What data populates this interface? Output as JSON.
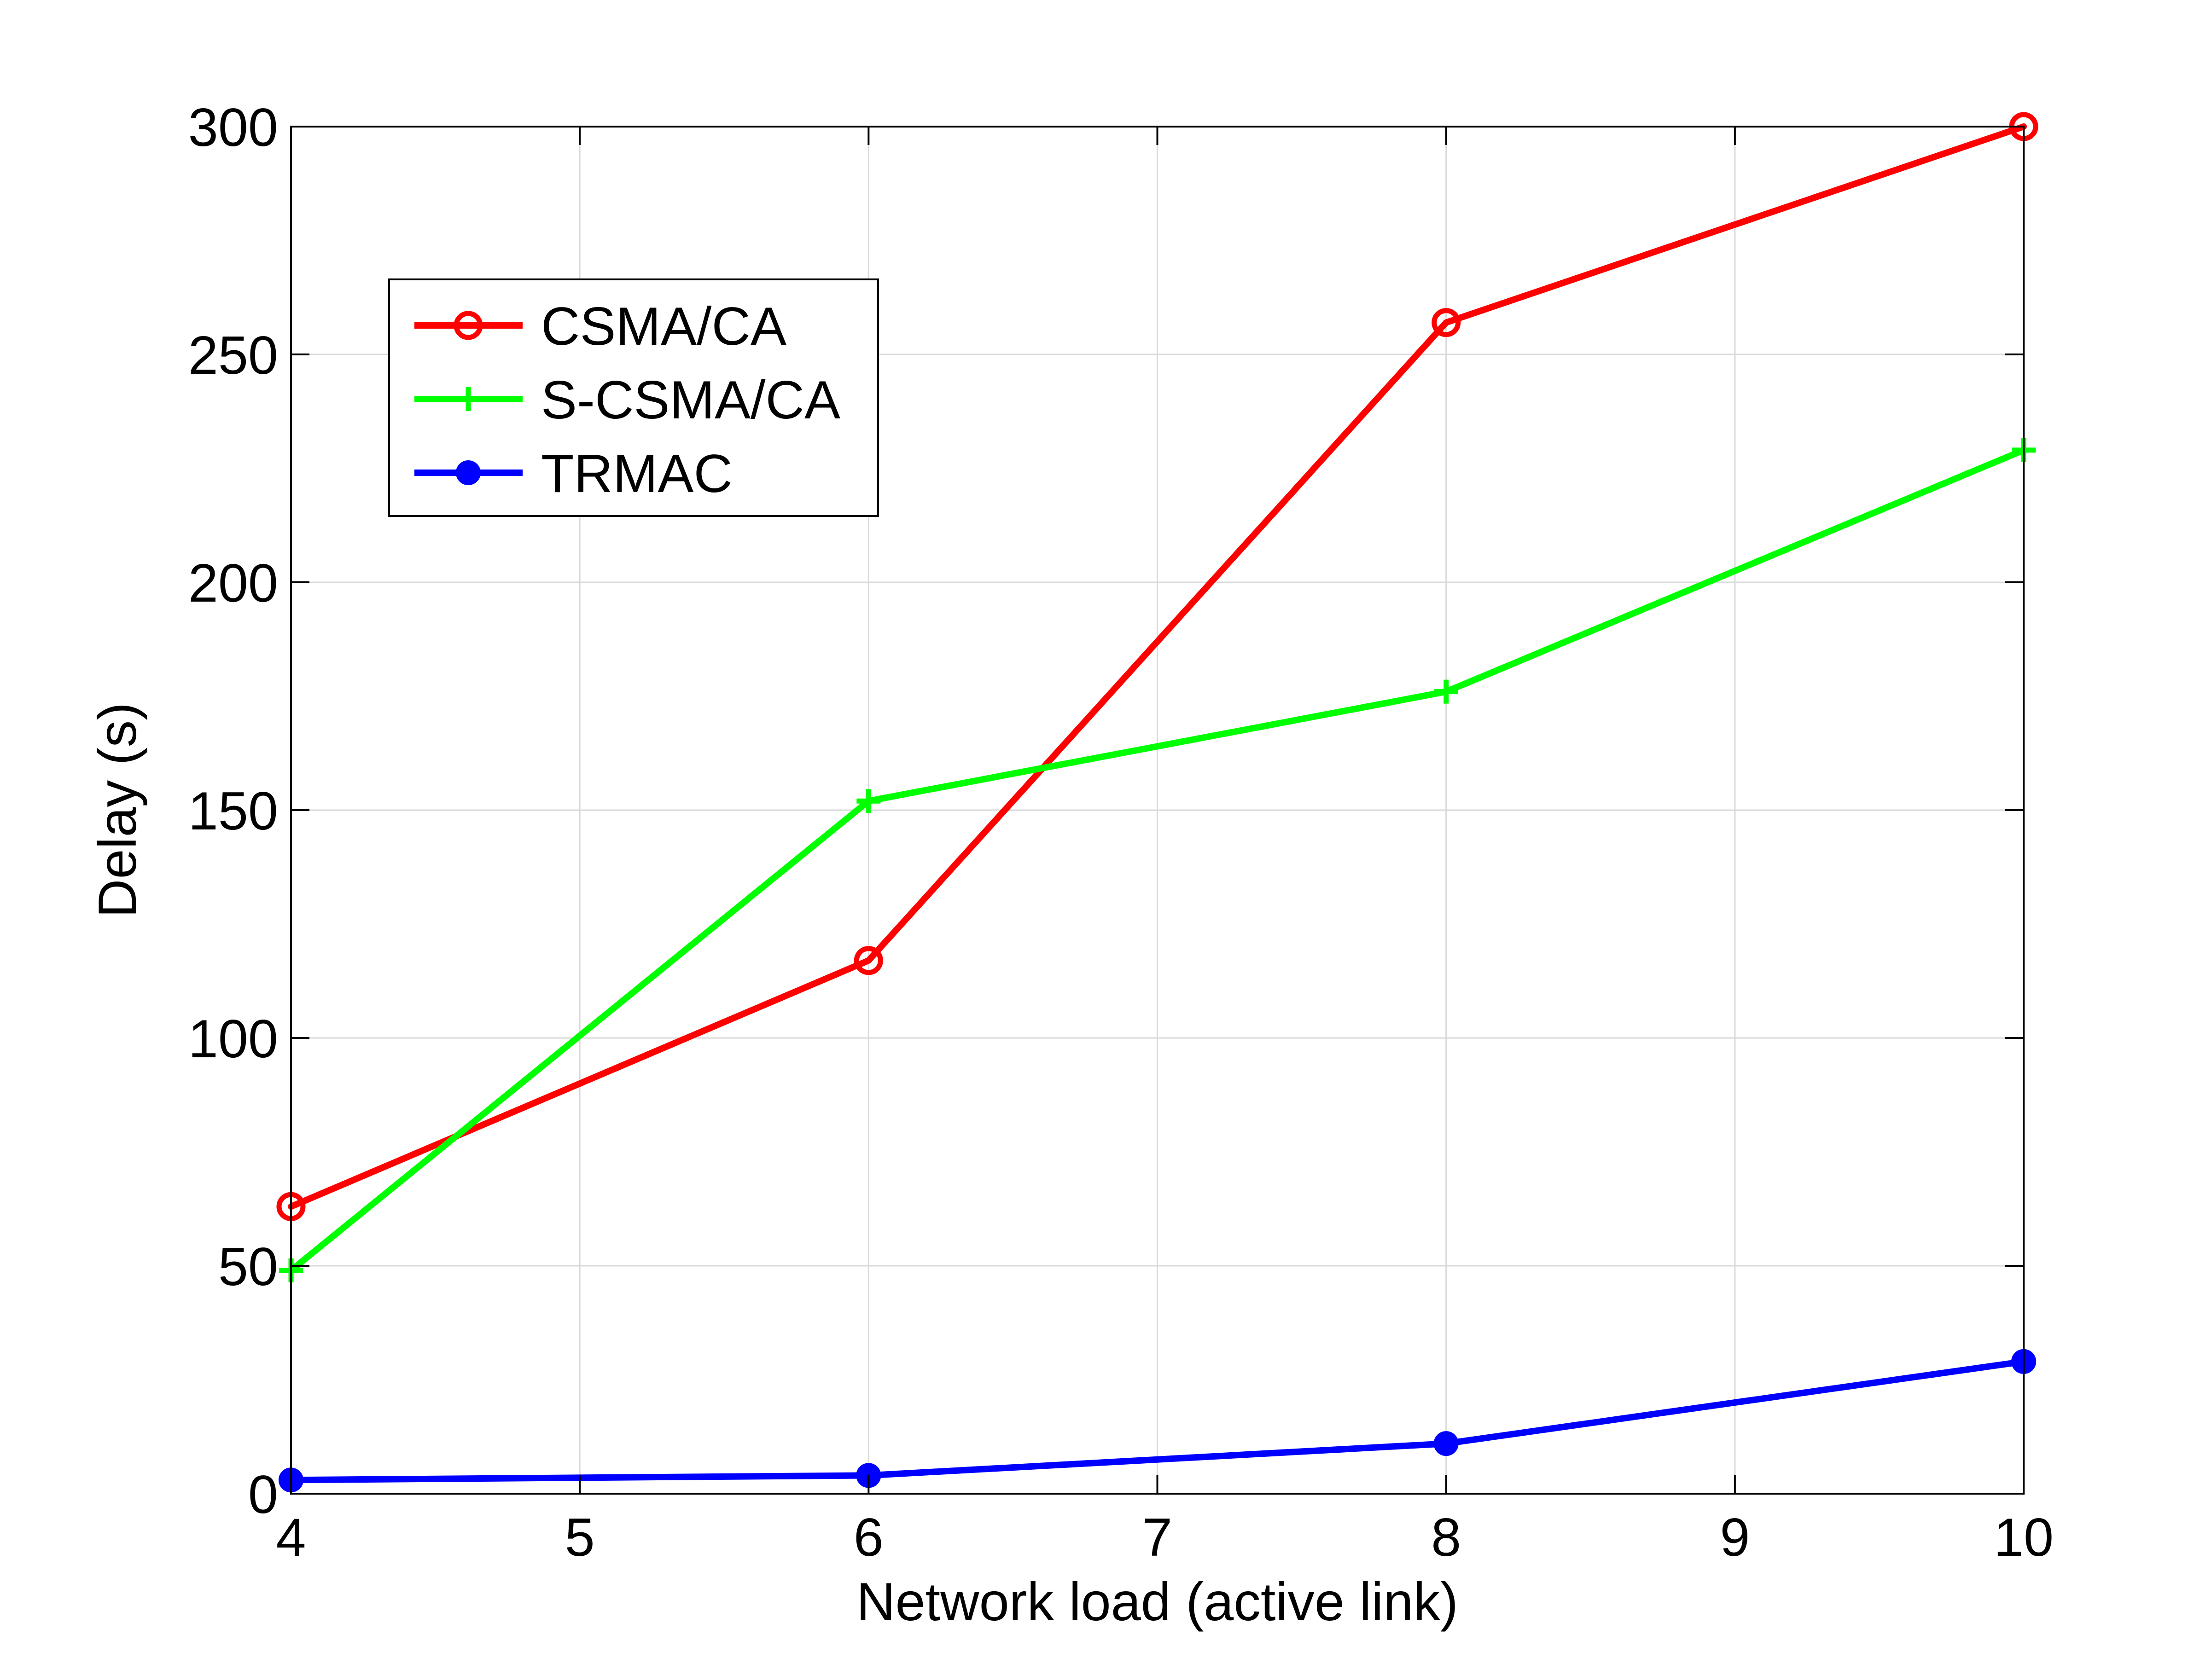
{
  "chart_data": {
    "type": "line",
    "title": "",
    "xlabel": "Network load (active link)",
    "ylabel": "Delay (s)",
    "xlim": [
      4,
      10
    ],
    "ylim": [
      0,
      300
    ],
    "xticks": [
      4,
      5,
      6,
      7,
      8,
      9,
      10
    ],
    "yticks": [
      0,
      50,
      100,
      150,
      200,
      250,
      300
    ],
    "grid": true,
    "legend_position": "upper-left",
    "x": [
      4,
      6,
      8,
      10
    ],
    "series": [
      {
        "name": "CSMA/CA",
        "values": [
          63,
          117,
          257,
          300
        ],
        "color": "#ff0000",
        "marker": "circle"
      },
      {
        "name": "S-CSMA/CA",
        "values": [
          49,
          152,
          176,
          229
        ],
        "color": "#00ff00",
        "marker": "plus"
      },
      {
        "name": "TRMAC",
        "values": [
          3,
          4,
          11,
          29
        ],
        "color": "#0000ff",
        "marker": "filled-circle"
      }
    ]
  }
}
